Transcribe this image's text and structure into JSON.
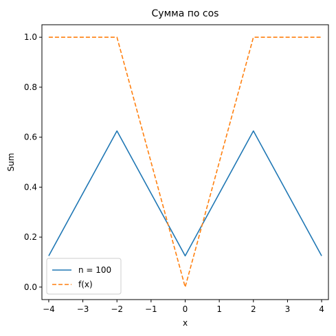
{
  "chart_data": {
    "type": "line",
    "title": "Сумма по cos",
    "xlabel": "x",
    "ylabel": "Sum",
    "xlim": [
      -4.2,
      4.2
    ],
    "ylim": [
      -0.05,
      1.05
    ],
    "xticks": [
      -4,
      -3,
      -2,
      -1,
      0,
      1,
      2,
      3,
      4
    ],
    "xtick_labels": [
      "−4",
      "−3",
      "−2",
      "−1",
      "0",
      "1",
      "2",
      "3",
      "4"
    ],
    "yticks": [
      0.0,
      0.2,
      0.4,
      0.6,
      0.8,
      1.0
    ],
    "ytick_labels": [
      "0.0",
      "0.2",
      "0.4",
      "0.6",
      "0.8",
      "1.0"
    ],
    "grid": false,
    "legend_position": "bottom-left",
    "series": [
      {
        "name": "n = 100",
        "color": "#1f77b4",
        "style": "solid",
        "x": [
          -4,
          -2,
          0,
          2,
          4
        ],
        "y": [
          0.125,
          0.625,
          0.125,
          0.625,
          0.125
        ]
      },
      {
        "name": "f(x)",
        "color": "#ff7f0e",
        "style": "dashed",
        "x": [
          -4,
          -2,
          0,
          2,
          4
        ],
        "y": [
          1.0,
          1.0,
          0.0,
          1.0,
          1.0
        ]
      }
    ]
  }
}
